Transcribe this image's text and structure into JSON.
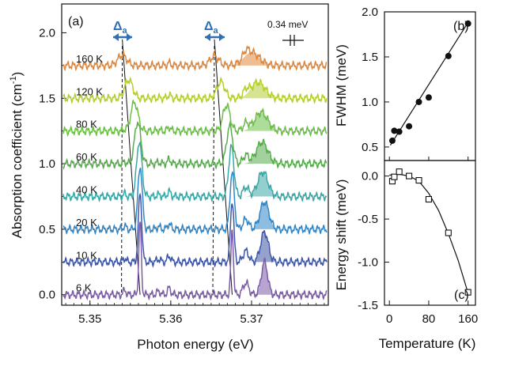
{
  "chart_data": [
    {
      "panel": "(a)",
      "type": "line",
      "xlabel": "Photon energy (eV)",
      "ylabel": "Absorption coefficient (cm",
      "ylabel_superscript": "-1",
      "ylabel_close": ")",
      "xlim": [
        5.3465,
        5.3795
      ],
      "ylim": [
        -0.08,
        2.22
      ],
      "x_ticks": [
        5.35,
        5.36,
        5.37
      ],
      "x_tick_labels": [
        "5.35",
        "5.36",
        "5.37"
      ],
      "y_ticks": [
        0.0,
        0.5,
        1.0,
        1.5,
        2.0
      ],
      "y_tick_labels": [
        "0.0",
        "0.5",
        "1.0",
        "1.5",
        "2.0"
      ],
      "offset_step": 0.25,
      "temperatures": [
        "6 K",
        "10 K",
        "20 K",
        "40 K",
        "60 K",
        "80 K",
        "120 K",
        "160 K"
      ],
      "series_colors": [
        "#7b5ba8",
        "#3f56a6",
        "#2f86c9",
        "#3aa7a6",
        "#57ab4d",
        "#6bbf45",
        "#b6cd33",
        "#e0873a"
      ],
      "peak_energies": [
        5.3562,
        5.3562,
        5.3562,
        5.3561,
        5.3559,
        5.3555,
        5.3548,
        5.354
      ],
      "peak2_energies": [
        5.3676,
        5.3676,
        5.3676,
        5.3675,
        5.3673,
        5.3669,
        5.3662,
        5.3654
      ],
      "peak_heights": [
        0.55,
        0.52,
        0.48,
        0.42,
        0.32,
        0.22,
        0.14,
        0.08
      ],
      "shaded_peak_centers": [
        5.3716,
        5.3716,
        5.3716,
        5.3714,
        5.3713,
        5.3712,
        5.3708,
        5.37
      ],
      "dashed_line_x": [
        [
          5.354,
          5.3539
        ],
        [
          5.3654,
          5.3652
        ]
      ],
      "solid_line_x": [
        [
          5.3562,
          5.354
        ],
        [
          5.3676,
          5.3654
        ]
      ],
      "delta_label": "Δ",
      "delta_subscript": "a",
      "scale_bar_label": "0.34 meV"
    },
    {
      "panel": "(b)",
      "type": "scatter",
      "ylabel": "FWHM (meV)",
      "xlim": [
        -10,
        175
      ],
      "ylim": [
        0.35,
        2.0
      ],
      "y_ticks": [
        0.5,
        1.0,
        1.5,
        2.0
      ],
      "y_tick_labels": [
        "0.5",
        "1.0",
        "1.5",
        "2.0"
      ],
      "x": [
        6,
        10,
        20,
        40,
        60,
        80,
        120,
        160
      ],
      "y": [
        0.57,
        0.68,
        0.67,
        0.73,
        1.0,
        1.05,
        1.51,
        1.87
      ],
      "fit": {
        "x": [
          2,
          162
        ],
        "y": [
          0.52,
          1.9
        ]
      },
      "marker": "filled-circle"
    },
    {
      "panel": "(c)",
      "type": "scatter",
      "xlabel": "Temperature (K)",
      "ylabel": "Energy shift (meV)",
      "xlim": [
        -10,
        175
      ],
      "ylim": [
        -1.5,
        0.18
      ],
      "x_ticks": [
        0,
        80,
        160
      ],
      "x_tick_labels": [
        "0",
        "80",
        "160"
      ],
      "y_ticks": [
        0.0,
        -0.5,
        -1.0,
        -1.5
      ],
      "y_tick_labels": [
        "0.0",
        "-0.5",
        "-1.0",
        "-1.5"
      ],
      "x": [
        6,
        10,
        20,
        40,
        60,
        80,
        120,
        160
      ],
      "y": [
        -0.06,
        -0.01,
        0.05,
        0.0,
        -0.05,
        -0.27,
        -0.66,
        -1.35
      ],
      "fit": {
        "x": [
          0,
          20,
          40,
          60,
          80,
          100,
          120,
          140,
          160
        ],
        "y": [
          0.01,
          0.02,
          0.0,
          -0.06,
          -0.2,
          -0.4,
          -0.67,
          -0.98,
          -1.36
        ]
      },
      "marker": "open-square"
    }
  ]
}
